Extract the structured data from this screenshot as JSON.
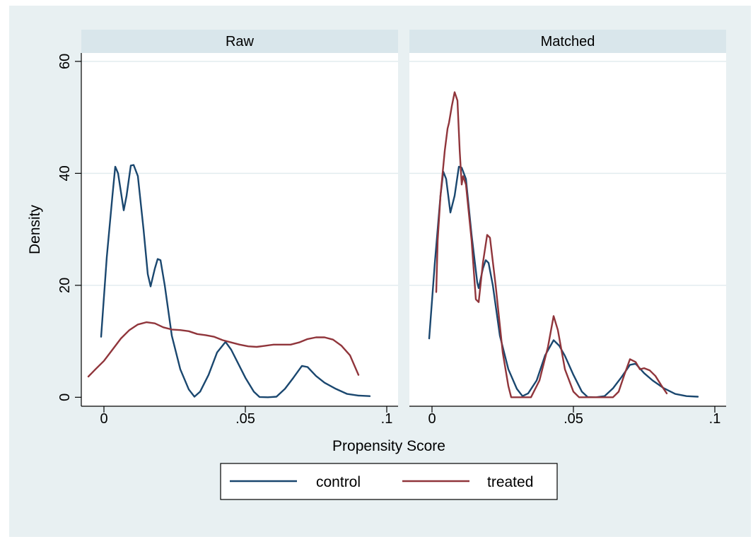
{
  "colors": {
    "outer_background": "#e8f0f2",
    "panel_background": "#ffffff",
    "strip_background": "#d9e6eb",
    "gridline": "#e2ecef",
    "control": "#1a476f",
    "treated": "#90353b"
  },
  "chart_data": {
    "type": "line",
    "kind": "kernel density",
    "ylabel": "Density",
    "xlabel": "Propensity Score",
    "xlim": [
      -0.008,
      0.104
    ],
    "ylim": [
      -1.6,
      61.5
    ],
    "yticks": [
      0,
      20,
      40,
      60
    ],
    "ytick_labels": [
      "0",
      "20",
      "40",
      "60"
    ],
    "xticks": [
      0,
      0.05,
      0.1
    ],
    "xtick_labels": [
      "0",
      ".05",
      ".1"
    ],
    "grid": true,
    "legend": {
      "position": "bottom",
      "entries": [
        {
          "label": "control",
          "series": "control"
        },
        {
          "label": "treated",
          "series": "treated"
        }
      ]
    },
    "panels": [
      {
        "title": "Raw",
        "series": [
          {
            "name": "control",
            "color": "#1a476f",
            "points": [
              [
                -0.001,
                10.8
              ],
              [
                0.001,
                25
              ],
              [
                0.003,
                36
              ],
              [
                0.004,
                41.2
              ],
              [
                0.005,
                40
              ],
              [
                0.007,
                33.4
              ],
              [
                0.008,
                36
              ],
              [
                0.0095,
                41.4
              ],
              [
                0.0105,
                41.5
              ],
              [
                0.012,
                39.5
              ],
              [
                0.014,
                30
              ],
              [
                0.0155,
                22
              ],
              [
                0.0165,
                19.8
              ],
              [
                0.018,
                23
              ],
              [
                0.019,
                24.7
              ],
              [
                0.02,
                24.5
              ],
              [
                0.0215,
                20
              ],
              [
                0.024,
                11
              ],
              [
                0.027,
                5
              ],
              [
                0.03,
                1.4
              ],
              [
                0.032,
                0.1
              ],
              [
                0.034,
                1
              ],
              [
                0.037,
                4
              ],
              [
                0.04,
                8
              ],
              [
                0.043,
                9.9
              ],
              [
                0.045,
                8.5
              ],
              [
                0.047,
                6.5
              ],
              [
                0.05,
                3.5
              ],
              [
                0.053,
                1
              ],
              [
                0.055,
                0.05
              ],
              [
                0.058,
                0
              ],
              [
                0.061,
                0.1
              ],
              [
                0.064,
                1.5
              ],
              [
                0.067,
                3.5
              ],
              [
                0.07,
                5.6
              ],
              [
                0.072,
                5.4
              ],
              [
                0.075,
                3.8
              ],
              [
                0.078,
                2.6
              ],
              [
                0.082,
                1.5
              ],
              [
                0.086,
                0.6
              ],
              [
                0.09,
                0.3
              ],
              [
                0.094,
                0.2
              ]
            ]
          },
          {
            "name": "treated",
            "color": "#90353b",
            "points": [
              [
                -0.0055,
                3.7
              ],
              [
                -0.003,
                5
              ],
              [
                0,
                6.5
              ],
              [
                0.003,
                8.5
              ],
              [
                0.006,
                10.5
              ],
              [
                0.009,
                12
              ],
              [
                0.012,
                13
              ],
              [
                0.015,
                13.4
              ],
              [
                0.018,
                13.2
              ],
              [
                0.021,
                12.5
              ],
              [
                0.024,
                12.1
              ],
              [
                0.027,
                12
              ],
              [
                0.03,
                11.8
              ],
              [
                0.033,
                11.3
              ],
              [
                0.036,
                11.1
              ],
              [
                0.039,
                10.8
              ],
              [
                0.042,
                10.2
              ],
              [
                0.045,
                9.8
              ],
              [
                0.048,
                9.4
              ],
              [
                0.051,
                9.1
              ],
              [
                0.054,
                9
              ],
              [
                0.057,
                9.2
              ],
              [
                0.06,
                9.4
              ],
              [
                0.063,
                9.4
              ],
              [
                0.066,
                9.4
              ],
              [
                0.069,
                9.8
              ],
              [
                0.072,
                10.4
              ],
              [
                0.075,
                10.7
              ],
              [
                0.078,
                10.7
              ],
              [
                0.081,
                10.3
              ],
              [
                0.084,
                9.2
              ],
              [
                0.087,
                7.5
              ],
              [
                0.09,
                4
              ]
            ]
          }
        ]
      },
      {
        "title": "Matched",
        "series": [
          {
            "name": "control",
            "color": "#1a476f",
            "points": [
              [
                -0.001,
                10.5
              ],
              [
                0.001,
                24
              ],
              [
                0.003,
                36
              ],
              [
                0.004,
                40.3
              ],
              [
                0.005,
                39
              ],
              [
                0.0065,
                33
              ],
              [
                0.008,
                36
              ],
              [
                0.0095,
                41.2
              ],
              [
                0.0105,
                41
              ],
              [
                0.012,
                39
              ],
              [
                0.014,
                29
              ],
              [
                0.016,
                20.5
              ],
              [
                0.0165,
                19.5
              ],
              [
                0.018,
                23
              ],
              [
                0.019,
                24.5
              ],
              [
                0.02,
                24
              ],
              [
                0.0215,
                20
              ],
              [
                0.024,
                11
              ],
              [
                0.027,
                5
              ],
              [
                0.03,
                1.5
              ],
              [
                0.032,
                0.2
              ],
              [
                0.034,
                0.7
              ],
              [
                0.037,
                3
              ],
              [
                0.04,
                7.5
              ],
              [
                0.043,
                10.2
              ],
              [
                0.045,
                9.2
              ],
              [
                0.047,
                7.4
              ],
              [
                0.05,
                4
              ],
              [
                0.053,
                1
              ],
              [
                0.055,
                0.05
              ],
              [
                0.058,
                0
              ],
              [
                0.061,
                0.2
              ],
              [
                0.064,
                1.6
              ],
              [
                0.067,
                3.6
              ],
              [
                0.07,
                5.8
              ],
              [
                0.072,
                6
              ],
              [
                0.075,
                4.3
              ],
              [
                0.078,
                3
              ],
              [
                0.082,
                1.6
              ],
              [
                0.086,
                0.6
              ],
              [
                0.09,
                0.2
              ],
              [
                0.094,
                0.1
              ]
            ]
          },
          {
            "name": "treated",
            "color": "#90353b",
            "points": [
              [
                0.0015,
                18.8
              ],
              [
                0.002,
                28
              ],
              [
                0.003,
                36
              ],
              [
                0.0045,
                44
              ],
              [
                0.0055,
                48
              ],
              [
                0.006,
                49
              ],
              [
                0.007,
                52
              ],
              [
                0.008,
                54.5
              ],
              [
                0.009,
                53
              ],
              [
                0.0098,
                44
              ],
              [
                0.0105,
                38
              ],
              [
                0.011,
                39.5
              ],
              [
                0.012,
                38
              ],
              [
                0.014,
                28
              ],
              [
                0.0155,
                17.5
              ],
              [
                0.0165,
                17
              ],
              [
                0.018,
                24
              ],
              [
                0.0195,
                29
              ],
              [
                0.0205,
                28.5
              ],
              [
                0.0225,
                20
              ],
              [
                0.025,
                8
              ],
              [
                0.027,
                2
              ],
              [
                0.028,
                0
              ],
              [
                0.033,
                0
              ],
              [
                0.035,
                0
              ],
              [
                0.038,
                3
              ],
              [
                0.041,
                9
              ],
              [
                0.043,
                14.5
              ],
              [
                0.0445,
                12
              ],
              [
                0.047,
                5
              ],
              [
                0.05,
                1
              ],
              [
                0.052,
                0
              ],
              [
                0.058,
                0
              ],
              [
                0.064,
                0
              ],
              [
                0.066,
                1
              ],
              [
                0.068,
                4
              ],
              [
                0.07,
                6.8
              ],
              [
                0.072,
                6.3
              ],
              [
                0.0735,
                5
              ],
              [
                0.075,
                5.2
              ],
              [
                0.077,
                4.8
              ],
              [
                0.079,
                3.8
              ],
              [
                0.081,
                2.2
              ],
              [
                0.083,
                0.7
              ]
            ]
          }
        ]
      }
    ]
  }
}
